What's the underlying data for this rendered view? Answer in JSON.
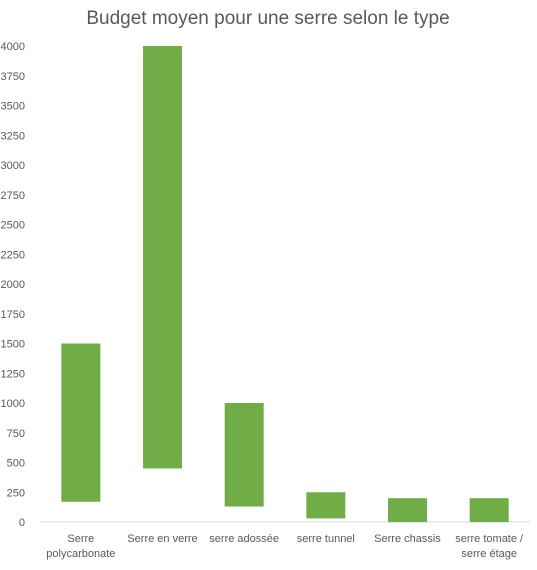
{
  "chart_data": {
    "type": "bar",
    "subtype": "floating-range",
    "title": "Budget moyen pour une serre selon le type",
    "xlabel": "",
    "ylabel": "",
    "ylim": [
      0,
      4000
    ],
    "yticks": [
      0,
      250,
      500,
      750,
      1000,
      1250,
      1500,
      1750,
      2000,
      2250,
      2500,
      2750,
      3000,
      3250,
      3500,
      3750,
      4000
    ],
    "grid": false,
    "legend": "none",
    "categories": [
      [
        "Serre",
        "polycarbonate"
      ],
      [
        "Serre en verre"
      ],
      [
        "serre adossée"
      ],
      [
        "serre tunnel"
      ],
      [
        "Serre chassis"
      ],
      [
        "serre tomate /",
        "serre étage"
      ]
    ],
    "series": [
      {
        "ranges": [
          [
            170,
            1500
          ],
          [
            450,
            4000
          ],
          [
            130,
            1000
          ],
          [
            30,
            250
          ],
          [
            0,
            200
          ],
          [
            0,
            200
          ]
        ]
      }
    ],
    "colors": {
      "bar": "#70ad47",
      "axis": "#d9d9d9",
      "text": "#595959",
      "title": "#595959"
    }
  }
}
